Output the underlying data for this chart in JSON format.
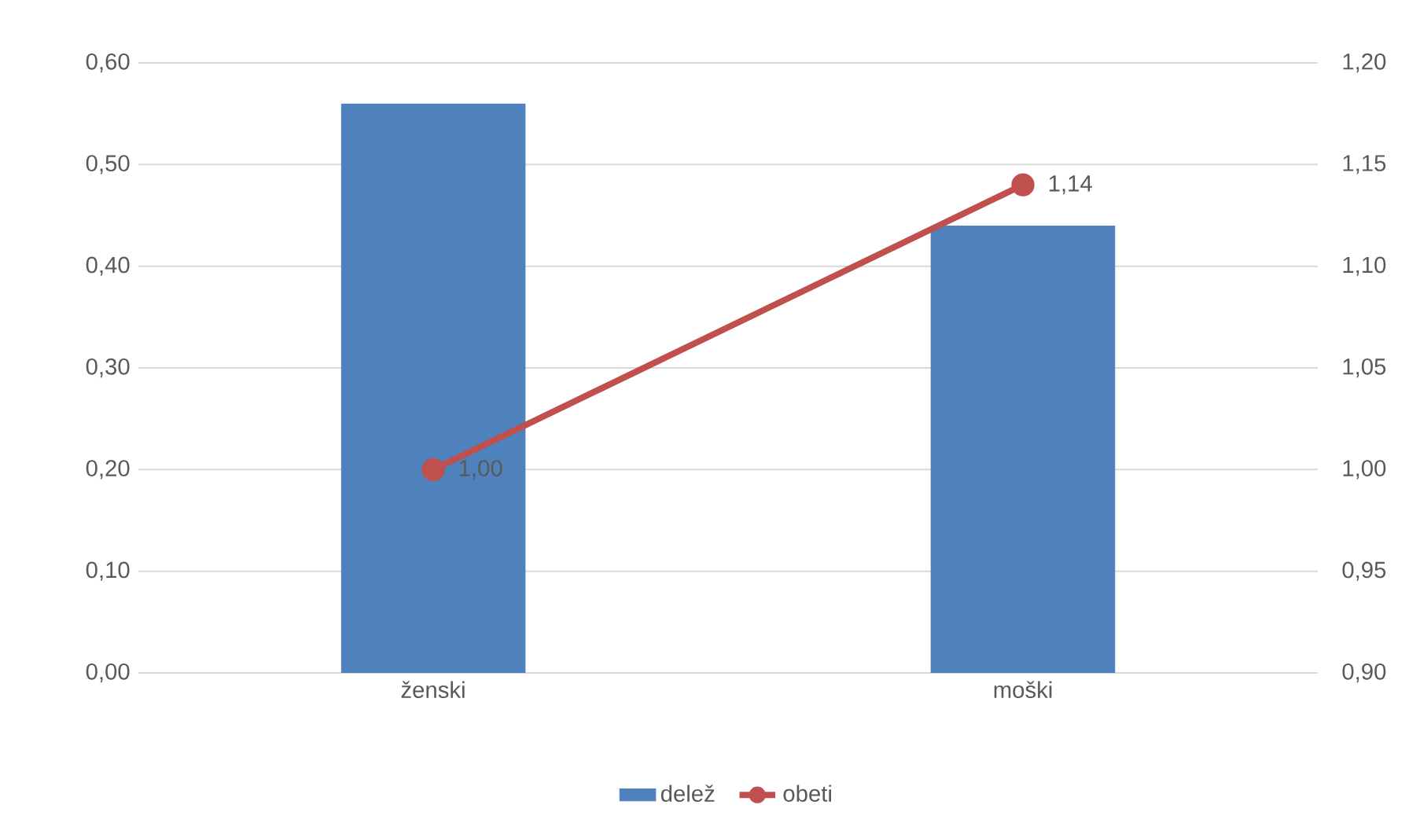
{
  "chart_data": {
    "type": "bar",
    "categories": [
      "ženski",
      "moški"
    ],
    "series": [
      {
        "name": "delež",
        "color": "#4f81bd",
        "values": [
          0.56,
          0.44
        ]
      },
      {
        "name": "obeti",
        "type": "line",
        "axis": "y2",
        "color": "#c0504d",
        "values": [
          1.0,
          1.14
        ],
        "value_labels": [
          "1,00",
          "1,14"
        ]
      }
    ],
    "ylim": [
      0,
      0.6
    ],
    "yticks": [
      {
        "value": 0,
        "label": "0,00"
      },
      {
        "value": 0.1,
        "label": "0,10"
      },
      {
        "value": 0.2,
        "label": "0,20"
      },
      {
        "value": 0.3,
        "label": "0,30"
      },
      {
        "value": 0.4,
        "label": "0,40"
      },
      {
        "value": 0.5,
        "label": "0,50"
      },
      {
        "value": 0.6,
        "label": "0,60"
      }
    ],
    "y2lim": [
      0.9,
      1.2
    ],
    "y2ticks": [
      {
        "value": 0.9,
        "label": "0,90"
      },
      {
        "value": 0.95,
        "label": "0,95"
      },
      {
        "value": 1.0,
        "label": "1,00"
      },
      {
        "value": 1.05,
        "label": "1,05"
      },
      {
        "value": 1.1,
        "label": "1,10"
      },
      {
        "value": 1.15,
        "label": "1,15"
      },
      {
        "value": 1.2,
        "label": "1,20"
      }
    ],
    "grid": "y",
    "legend": "bottom",
    "marker": "circle"
  }
}
